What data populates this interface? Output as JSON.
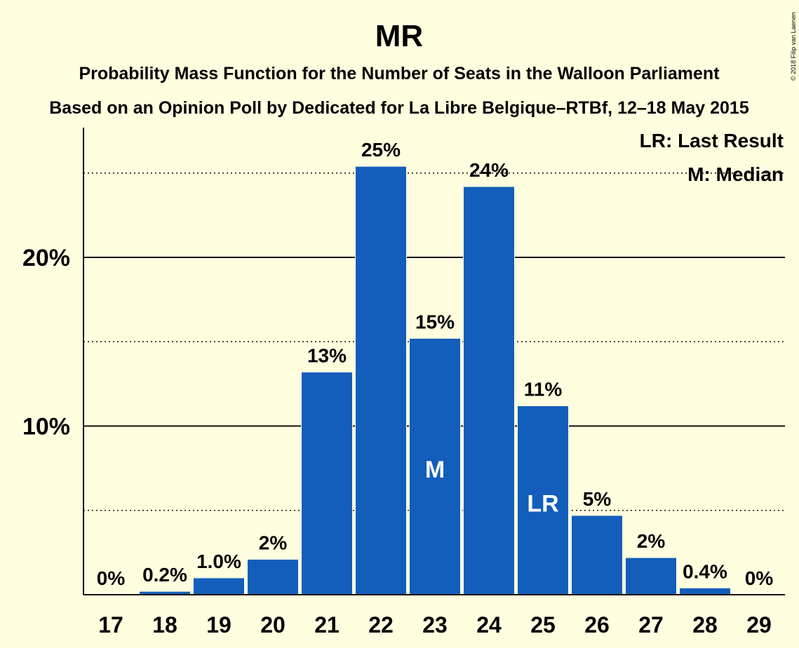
{
  "chart_data": {
    "type": "bar",
    "title": "MR",
    "subtitle": "Probability Mass Function for the Number of Seats in the Walloon Parliament",
    "subtitle2": "Based on an Opinion Poll by Dedicated for La Libre Belgique–RTBf, 12–18 May 2015",
    "categories": [
      "17",
      "18",
      "19",
      "20",
      "21",
      "22",
      "23",
      "24",
      "25",
      "26",
      "27",
      "28",
      "29"
    ],
    "values": [
      0,
      0.2,
      1.0,
      2.1,
      13.2,
      25.4,
      15.2,
      24.2,
      11.2,
      4.7,
      2.2,
      0.4,
      0
    ],
    "value_labels": [
      "0%",
      "0.2%",
      "1.0%",
      "2%",
      "13%",
      "25%",
      "15%",
      "24%",
      "11%",
      "5%",
      "2%",
      "0.4%",
      "0%"
    ],
    "ylim": [
      0,
      27.7
    ],
    "yticks_major": [
      10,
      20
    ],
    "ytick_labels": [
      "10%",
      "20%"
    ],
    "yticks_minor": [
      5,
      15,
      25
    ],
    "bar_color": "#135ebb",
    "median_category": "23",
    "median_label": "M",
    "last_result_category": "25",
    "last_result_label": "LR",
    "legend": [
      "LR: Last Result",
      "M: Median"
    ],
    "legend_position": "top-right",
    "copyright": "© 2018 Filip van Laenen"
  }
}
